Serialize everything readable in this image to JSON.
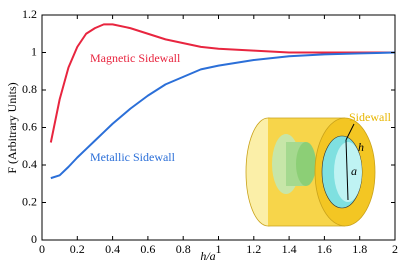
{
  "chart_data": {
    "type": "line",
    "x_label": "h/a",
    "y_label": "F (Arbitrary Units)",
    "x": [
      0.05,
      0.1,
      0.15,
      0.2,
      0.25,
      0.3,
      0.35,
      0.4,
      0.5,
      0.6,
      0.7,
      0.8,
      0.9,
      1.0,
      1.2,
      1.4,
      1.6,
      1.8,
      2.0
    ],
    "series": [
      {
        "name": "Magnetic Sidewall",
        "color": "#e8253f",
        "values": [
          0.52,
          0.75,
          0.92,
          1.03,
          1.1,
          1.13,
          1.15,
          1.15,
          1.13,
          1.1,
          1.07,
          1.05,
          1.03,
          1.02,
          1.01,
          1.0,
          1.0,
          1.0,
          1.0
        ]
      },
      {
        "name": "Metallic Sidewall",
        "color": "#2b6fd8",
        "values": [
          0.33,
          0.345,
          0.39,
          0.44,
          0.485,
          0.53,
          0.575,
          0.62,
          0.7,
          0.77,
          0.83,
          0.87,
          0.91,
          0.93,
          0.96,
          0.98,
          0.99,
          0.995,
          1.0
        ]
      }
    ],
    "xlim": [
      0,
      2
    ],
    "xticks": [
      0,
      0.2,
      0.4,
      0.6,
      0.8,
      1,
      1.2,
      1.4,
      1.6,
      1.8,
      2
    ],
    "ylim": [
      0,
      1.2
    ],
    "yticks": [
      0,
      0.2,
      0.4,
      0.6,
      0.8,
      1,
      1.2
    ],
    "annotations": [
      "Sidewall",
      "h",
      "a"
    ]
  }
}
